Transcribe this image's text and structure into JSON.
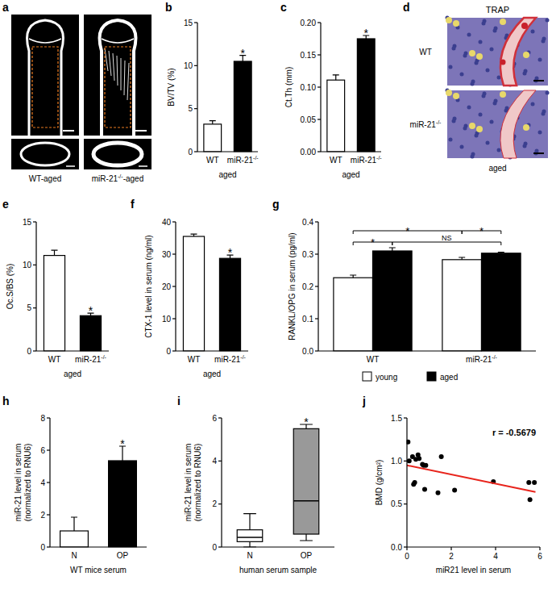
{
  "chart_data": [
    {
      "panel": "a",
      "type": "image",
      "labels": [
        "WT-aged",
        "miR-21-/--aged"
      ]
    },
    {
      "panel": "b",
      "type": "bar",
      "ylabel": "BV/TV (%)",
      "xlabel": "aged",
      "categories": [
        "WT",
        "miR-21-/-"
      ],
      "values": [
        3.2,
        10.5
      ],
      "errors": [
        0.4,
        0.7
      ],
      "colors": [
        "#ffffff",
        "#000000"
      ],
      "ylim": [
        0,
        15
      ],
      "yticks": [
        0,
        5,
        10,
        15
      ],
      "annotations": [
        {
          "text": "*",
          "category": 1
        }
      ]
    },
    {
      "panel": "c",
      "type": "bar",
      "ylabel": "Ct.Th (mm)",
      "xlabel": "aged",
      "categories": [
        "WT",
        "miR-21-/-"
      ],
      "values": [
        0.111,
        0.175
      ],
      "errors": [
        0.008,
        0.005
      ],
      "colors": [
        "#ffffff",
        "#000000"
      ],
      "ylim": [
        0,
        0.2
      ],
      "yticks": [
        {
          "value": 0,
          "label": "0.00"
        },
        {
          "value": 0.05,
          "label": "0.05"
        },
        {
          "value": 0.1,
          "label": "0.10"
        },
        {
          "value": 0.15,
          "label": "0.15"
        },
        {
          "value": 0.2,
          "label": "0.20"
        }
      ],
      "annotations": [
        {
          "text": "*",
          "category": 1
        }
      ]
    },
    {
      "panel": "d",
      "type": "image",
      "title": "TRAP",
      "labels": [
        "WT",
        "miR-21-/-"
      ],
      "xlabel": "aged"
    },
    {
      "panel": "e",
      "type": "bar",
      "ylabel": "Oc.S/BS (%)",
      "xlabel": "aged",
      "categories": [
        "WT",
        "miR-21-/-"
      ],
      "values": [
        11.1,
        4.1
      ],
      "errors": [
        0.6,
        0.3
      ],
      "colors": [
        "#ffffff",
        "#000000"
      ],
      "ylim": [
        0,
        15
      ],
      "yticks": [
        0,
        5,
        10,
        15
      ],
      "annotations": [
        {
          "text": "*",
          "category": 1
        }
      ]
    },
    {
      "panel": "f",
      "type": "bar",
      "ylabel": "CTX-1 level in serum (ng/ml)",
      "xlabel": "aged",
      "categories": [
        "WT",
        "miR-21-/-"
      ],
      "values": [
        35.5,
        28.7
      ],
      "errors": [
        0.7,
        1.0
      ],
      "colors": [
        "#ffffff",
        "#000000"
      ],
      "ylim": [
        0,
        40
      ],
      "yticks": [
        0,
        10,
        20,
        30,
        40
      ],
      "annotations": [
        {
          "text": "*",
          "category": 1
        }
      ]
    },
    {
      "panel": "g",
      "type": "bar",
      "ylabel": "RANKL/OPG in serum (pg/ml)",
      "categories": [
        "WT",
        "miR-21-/-"
      ],
      "series": [
        {
          "name": "young",
          "color": "#ffffff",
          "values": [
            0.227,
            0.283
          ],
          "errors": [
            0.008,
            0.007
          ]
        },
        {
          "name": "aged",
          "color": "#000000",
          "values": [
            0.31,
            0.303
          ],
          "errors": [
            0.01,
            0.003
          ]
        }
      ],
      "ylim": [
        0,
        0.4
      ],
      "yticks": [
        {
          "value": 0,
          "label": "0.0"
        },
        {
          "value": 0.1,
          "label": "0.1"
        },
        {
          "value": 0.2,
          "label": "0.2"
        },
        {
          "value": 0.3,
          "label": "0.3"
        },
        {
          "value": 0.4,
          "label": "0.4"
        }
      ],
      "legend": "bottom",
      "annotations": [
        {
          "text": "*",
          "from": [
            0,
            0
          ],
          "to": [
            0,
            1
          ]
        },
        {
          "text": "NS",
          "from": [
            0,
            1
          ],
          "to": [
            1,
            1
          ]
        },
        {
          "text": "*",
          "from": [
            0,
            0
          ],
          "to": [
            1,
            0
          ]
        },
        {
          "text": "*",
          "from": [
            1,
            0
          ],
          "to": [
            1,
            1
          ]
        }
      ]
    },
    {
      "panel": "h",
      "type": "bar",
      "ylabel": "miR-21 level in serum (normalized to RNU6)",
      "xlabel": "WT mice serum",
      "categories": [
        "N",
        "OP"
      ],
      "values": [
        1.0,
        5.35
      ],
      "errors": [
        0.85,
        0.9
      ],
      "colors": [
        "#ffffff",
        "#000000"
      ],
      "ylim": [
        0,
        8
      ],
      "yticks": [
        0,
        2,
        4,
        6,
        8
      ],
      "annotations": [
        {
          "text": "*",
          "category": 1
        }
      ]
    },
    {
      "panel": "i",
      "type": "box",
      "ylabel": "miR-21 level in serum (normalized to RNU6)",
      "xlabel": "human serum sample",
      "categories": [
        "N",
        "OP"
      ],
      "min": [
        0,
        0.3
      ],
      "q1": [
        0.25,
        0.6
      ],
      "median": [
        0.45,
        2.15
      ],
      "q3": [
        0.8,
        5.5
      ],
      "max": [
        1.55,
        5.7
      ],
      "colors": [
        "#ffffff",
        "#999999"
      ],
      "ylim": [
        0,
        6
      ],
      "yticks": [
        0,
        2,
        4,
        6
      ],
      "annotations": [
        {
          "text": "*",
          "category": 1
        }
      ]
    },
    {
      "panel": "j",
      "type": "scatter",
      "xlabel": "miR21 level in serum",
      "ylabel": "BMD (g/cm²)",
      "x": [
        0.05,
        0.1,
        0.25,
        0.3,
        0.35,
        0.4,
        0.5,
        0.55,
        0.7,
        0.75,
        0.8,
        0.85,
        1.4,
        1.55,
        2.15,
        3.9,
        5.5,
        5.55,
        5.75
      ],
      "y": [
        1.22,
        1.0,
        1.05,
        0.73,
        0.75,
        1.02,
        1.07,
        1.03,
        0.96,
        0.95,
        0.67,
        0.95,
        0.63,
        1.05,
        0.66,
        0.76,
        0.75,
        0.55,
        0.75
      ],
      "color": "#000000",
      "fit": {
        "x": [
          0,
          5.8
        ],
        "y": [
          0.95,
          0.64
        ],
        "color": "#e8241c"
      },
      "xlim": [
        0,
        6
      ],
      "xticks": [
        0,
        2,
        4,
        6
      ],
      "ylim": [
        0,
        1.5
      ],
      "yticks": [
        {
          "value": 0,
          "label": "0.0"
        },
        {
          "value": 0.5,
          "label": "0.5"
        },
        {
          "value": 1,
          "label": "1.0"
        },
        {
          "value": 1.5,
          "label": "1.5"
        }
      ],
      "annotations": [
        {
          "text": "r = -0.5679"
        }
      ]
    }
  ]
}
